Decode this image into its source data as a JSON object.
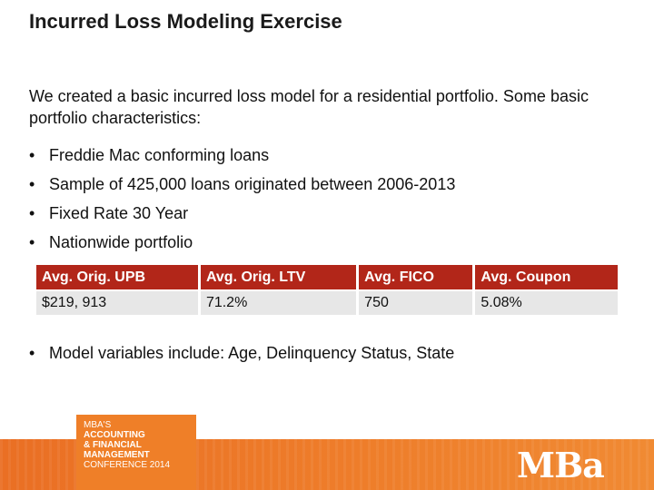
{
  "title": "Incurred Loss Modeling Exercise",
  "intro": "We created a basic incurred loss model for a residential portfolio. Some basic portfolio characteristics:",
  "bullets": [
    "Freddie Mac conforming loans",
    "Sample of 425,000 loans originated between 2006-2013",
    "Fixed Rate 30 Year",
    "Nationwide portfolio"
  ],
  "table": {
    "headers": [
      "Avg. Orig. UPB",
      "Avg. Orig. LTV",
      "Avg. FICO",
      "Avg. Coupon"
    ],
    "row": [
      "$219, 913",
      "71.2%",
      "750",
      "5.08%"
    ]
  },
  "bullets_after": [
    "Model variables include: Age, Delinquency Status, State"
  ],
  "footer": {
    "conference_lines": [
      "MBA's",
      "ACCOUNTING",
      "& FINANCIAL",
      "MANAGEMENT",
      "CONFERENCE 2014"
    ],
    "logo_text": "MBa"
  },
  "colors": {
    "header_red": "#b22619",
    "cell_gray": "#e7e7e7",
    "footer_orange": "#ee7d2a"
  },
  "bullet_glyph": "•"
}
